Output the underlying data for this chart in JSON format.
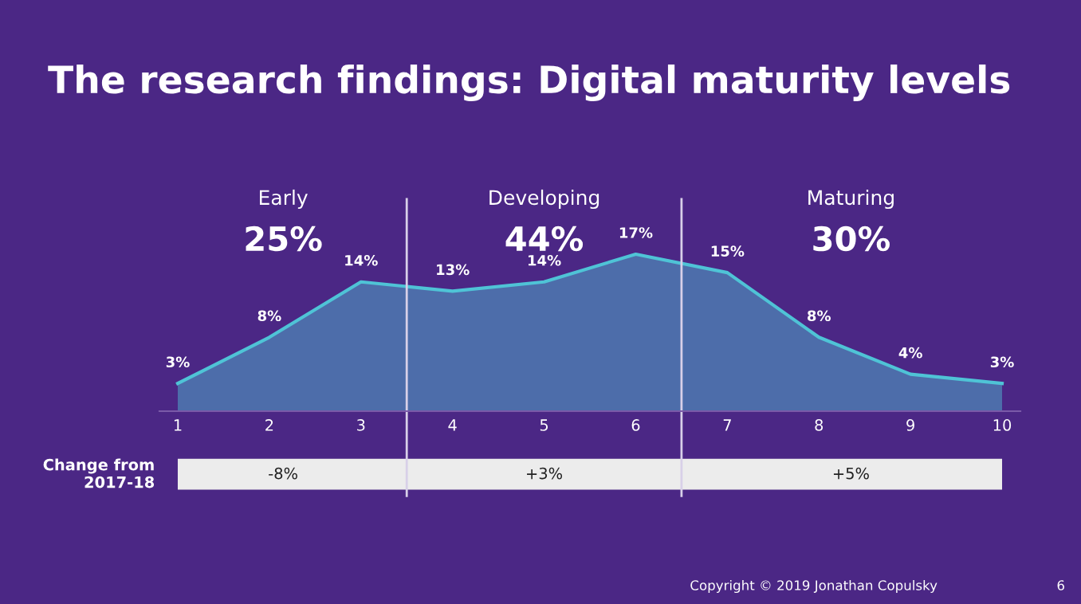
{
  "chart_data": {
    "type": "area",
    "title": "The research findings: Digital maturity levels",
    "x": [
      1,
      2,
      3,
      4,
      5,
      6,
      7,
      8,
      9,
      10
    ],
    "xlim": [
      0.8,
      10.2
    ],
    "xticks": [
      1,
      2,
      3,
      4,
      5,
      6,
      7,
      8,
      9,
      10
    ],
    "tick_labels": "x",
    "series": [
      {
        "color": "#4fc3d6",
        "values": [
          3,
          8,
          14,
          13,
          14,
          17,
          15,
          8,
          4,
          3
        ],
        "value_labels": [
          "3%",
          "8%",
          "14%",
          "13%",
          "14%",
          "17%",
          "15%",
          "8%",
          "4%",
          "3%"
        ]
      }
    ],
    "ref_lines": [
      {
        "axis": "x",
        "value": 3.5,
        "color": "#d8d0e8"
      },
      {
        "axis": "x",
        "value": 6.5,
        "color": "#d8d0e8"
      }
    ],
    "grid": false,
    "marker": "none",
    "line_style": "solid",
    "annotations": [
      "Early",
      "25%",
      "Developing",
      "44%",
      "Maturing",
      "30%",
      "Change from\n2017-18",
      "-8%",
      "+3%",
      "+5%",
      "Copyright © 2019 Jonathan Copulsky",
      "6"
    ]
  }
}
